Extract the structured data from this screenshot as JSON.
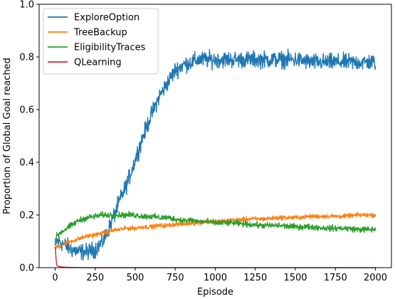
{
  "chart_data": {
    "type": "line",
    "title": "",
    "xlabel": "Episode",
    "ylabel": "Proportion of Global Goal reached",
    "xlim": [
      -100,
      2100
    ],
    "ylim": [
      0.0,
      1.0
    ],
    "xticks": [
      0,
      250,
      500,
      750,
      1000,
      1250,
      1500,
      1750,
      2000
    ],
    "yticks": [
      0.0,
      0.2,
      0.4,
      0.6,
      0.8,
      1.0
    ],
    "xtick_labels": [
      "0",
      "250",
      "500",
      "750",
      "1000",
      "1250",
      "1500",
      "1750",
      "2000"
    ],
    "ytick_labels": [
      "0.0",
      "0.2",
      "0.4",
      "0.6",
      "0.8",
      "1.0"
    ],
    "grid": false,
    "legend_position": "top-left",
    "series": [
      {
        "name": "ExploreOption",
        "color": "#1f77b4",
        "noise": 0.022,
        "x": [
          0,
          10,
          25,
          50,
          100,
          150,
          200,
          250,
          300,
          350,
          400,
          450,
          500,
          550,
          600,
          650,
          700,
          750,
          800,
          850,
          900,
          950,
          1000,
          1100,
          1200,
          1300,
          1400,
          1500,
          1600,
          1700,
          1800,
          1900,
          2000
        ],
        "y": [
          0.08,
          0.1,
          0.1,
          0.09,
          0.07,
          0.06,
          0.06,
          0.07,
          0.1,
          0.17,
          0.25,
          0.32,
          0.41,
          0.5,
          0.58,
          0.65,
          0.7,
          0.75,
          0.77,
          0.78,
          0.79,
          0.79,
          0.79,
          0.79,
          0.79,
          0.79,
          0.79,
          0.79,
          0.78,
          0.78,
          0.78,
          0.78,
          0.78
        ]
      },
      {
        "name": "TreeBackup",
        "color": "#ff7f0e",
        "noise": 0.006,
        "x": [
          0,
          10,
          25,
          50,
          100,
          150,
          200,
          250,
          300,
          350,
          400,
          450,
          500,
          550,
          600,
          650,
          700,
          750,
          800,
          850,
          900,
          950,
          1000,
          1100,
          1200,
          1300,
          1400,
          1500,
          1600,
          1700,
          1800,
          1900,
          2000
        ],
        "y": [
          0.07,
          0.08,
          0.08,
          0.09,
          0.1,
          0.11,
          0.12,
          0.125,
          0.13,
          0.14,
          0.145,
          0.15,
          0.15,
          0.155,
          0.155,
          0.16,
          0.16,
          0.165,
          0.165,
          0.17,
          0.17,
          0.175,
          0.175,
          0.18,
          0.185,
          0.185,
          0.19,
          0.19,
          0.195,
          0.195,
          0.195,
          0.2,
          0.2
        ]
      },
      {
        "name": "EligibilityTraces",
        "color": "#2ca02c",
        "noise": 0.008,
        "x": [
          0,
          10,
          25,
          50,
          100,
          150,
          200,
          250,
          300,
          350,
          400,
          450,
          500,
          550,
          600,
          650,
          700,
          750,
          800,
          850,
          900,
          950,
          1000,
          1100,
          1200,
          1300,
          1400,
          1500,
          1600,
          1700,
          1800,
          1900,
          2000
        ],
        "y": [
          0.09,
          0.12,
          0.13,
          0.14,
          0.16,
          0.18,
          0.19,
          0.195,
          0.2,
          0.2,
          0.2,
          0.2,
          0.2,
          0.195,
          0.195,
          0.19,
          0.19,
          0.185,
          0.18,
          0.18,
          0.175,
          0.175,
          0.17,
          0.17,
          0.165,
          0.16,
          0.16,
          0.155,
          0.155,
          0.15,
          0.15,
          0.145,
          0.145
        ]
      },
      {
        "name": "QLearning",
        "color": "#d62728",
        "noise": 0.0,
        "x": [
          0,
          3,
          6,
          10,
          20,
          40,
          60,
          100,
          200,
          500,
          1000,
          1500,
          2000
        ],
        "y": [
          0.08,
          0.06,
          0.03,
          0.01,
          0.005,
          0.003,
          0.002,
          0.001,
          0.0,
          0.0,
          0.0,
          0.0,
          0.0
        ]
      }
    ]
  }
}
